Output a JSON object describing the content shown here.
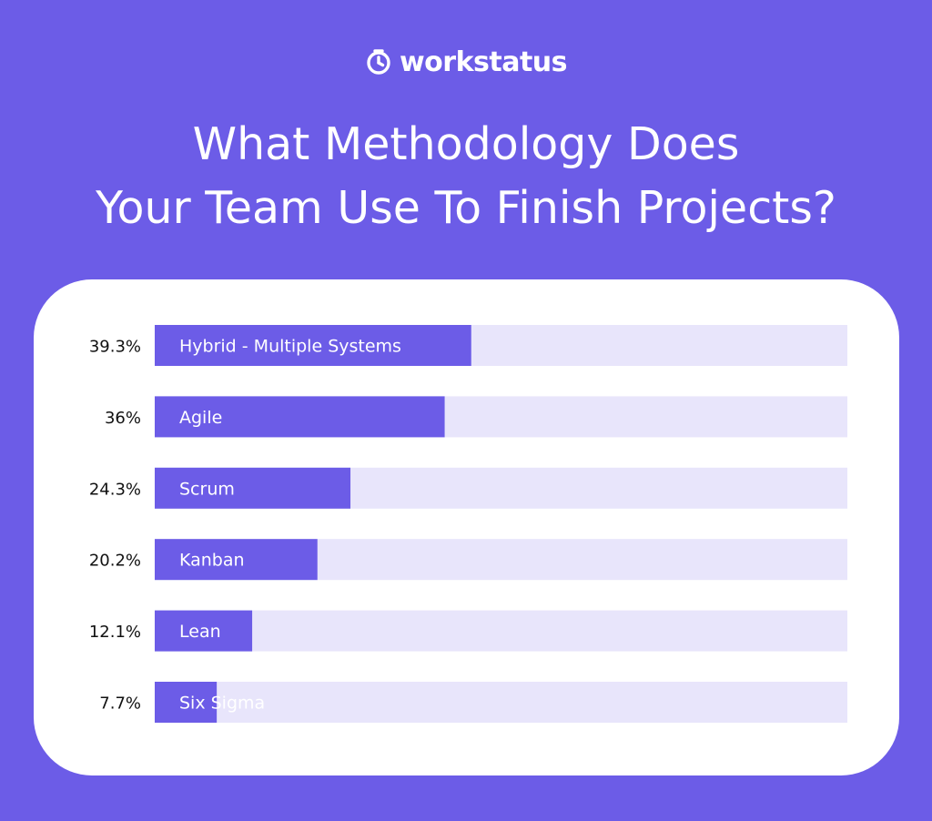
{
  "brand": {
    "name": "workstatus",
    "icon": "stopwatch-icon"
  },
  "colors": {
    "background": "#6c5ce7",
    "bar": "#6c5ce7",
    "track": "#e8e5fb",
    "card": "#ffffff",
    "value_text": "#111111"
  },
  "chart_data": {
    "type": "bar",
    "orientation": "horizontal",
    "title": "What Methodology Does Your Team Use To Finish Projects?",
    "title_lines": [
      "What Methodology Does",
      "Your Team Use To Finish Projects?"
    ],
    "categories": [
      "Hybrid - Multiple Systems",
      "Agile",
      "Scrum",
      "Kanban",
      "Lean",
      "Six Sigma"
    ],
    "values": [
      39.3,
      36,
      24.3,
      20.2,
      12.1,
      7.7
    ],
    "value_labels": [
      "39.3%",
      "36%",
      "24.3%",
      "20.2%",
      "12.1%",
      "7.7%"
    ],
    "unit": "%",
    "xlim": [
      0,
      86
    ],
    "xlabel": "",
    "ylabel": "",
    "grid": false,
    "legend": false
  }
}
